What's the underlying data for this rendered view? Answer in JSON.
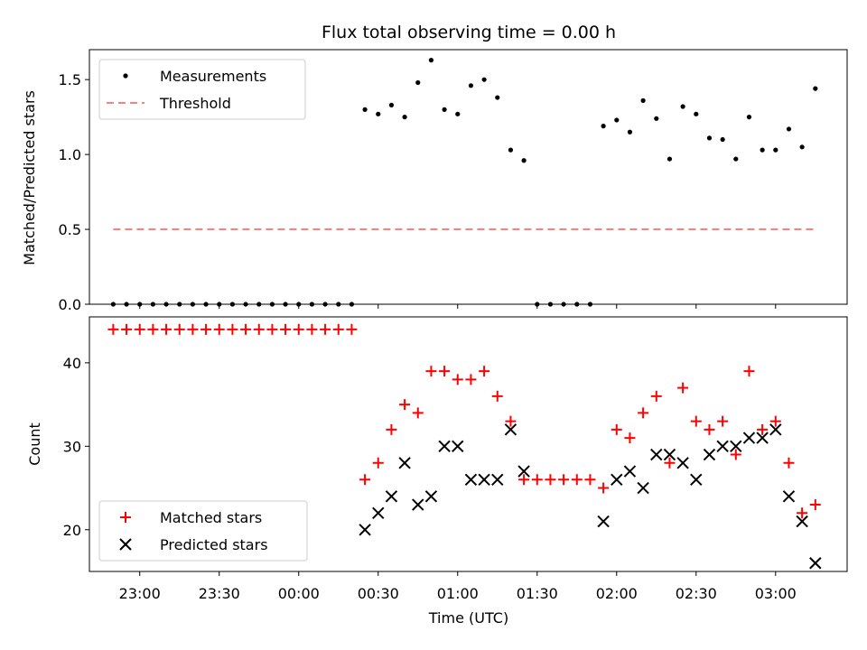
{
  "chart_data": [
    {
      "type": "scatter",
      "title": "Flux total observing time = 0.00 h",
      "xlabel": "",
      "ylabel": "Matched/Predicted stars",
      "ylim": [
        0.0,
        1.7
      ],
      "yticks": [
        0.0,
        0.5,
        1.0,
        1.5
      ],
      "ytick_labels": [
        "0.0",
        "0.5",
        "1.0",
        "1.5"
      ],
      "legend": "top-left",
      "series": [
        {
          "name": "Measurements",
          "style": "dot",
          "color": "#000000",
          "x": [
            "22:50",
            "22:55",
            "23:00",
            "23:05",
            "23:10",
            "23:15",
            "23:20",
            "23:25",
            "23:30",
            "23:35",
            "23:40",
            "23:45",
            "23:50",
            "23:55",
            "00:00",
            "00:05",
            "00:10",
            "00:15",
            "00:20",
            "00:25",
            "00:30",
            "00:35",
            "00:40",
            "00:45",
            "00:50",
            "00:55",
            "01:00",
            "01:05",
            "01:10",
            "01:15",
            "01:20",
            "01:25",
            "01:30",
            "01:35",
            "01:40",
            "01:45",
            "01:50",
            "01:55",
            "02:00",
            "02:05",
            "02:10",
            "02:15",
            "02:20",
            "02:25",
            "02:30",
            "02:35",
            "02:40",
            "02:45",
            "02:50",
            "02:55",
            "03:00",
            "03:05",
            "03:10",
            "03:15"
          ],
          "values": [
            0,
            0,
            0,
            0,
            0,
            0,
            0,
            0,
            0,
            0,
            0,
            0,
            0,
            0,
            0,
            0,
            0,
            0,
            0,
            1.3,
            1.27,
            1.33,
            1.25,
            1.48,
            1.63,
            1.3,
            1.27,
            1.46,
            1.5,
            1.38,
            1.03,
            0.96,
            0,
            0,
            0,
            0,
            0,
            1.19,
            1.23,
            1.15,
            1.36,
            1.24,
            0.97,
            1.32,
            1.27,
            1.11,
            1.1,
            0.97,
            1.25,
            1.03,
            1.03,
            1.17,
            1.05,
            1.44
          ]
        },
        {
          "name": "Threshold",
          "style": "dashed",
          "color": "#ff7f7f",
          "x": [
            "22:50",
            "03:15"
          ],
          "values": [
            0.5,
            0.5
          ]
        }
      ]
    },
    {
      "type": "scatter",
      "xlabel": "Time (UTC)",
      "ylabel": "Count",
      "ylim": [
        15,
        45.5
      ],
      "yticks": [
        20,
        30,
        40
      ],
      "ytick_labels": [
        "20",
        "30",
        "40"
      ],
      "xticks": [
        "23:00",
        "23:30",
        "00:00",
        "00:30",
        "01:00",
        "01:30",
        "02:00",
        "02:30",
        "03:00"
      ],
      "legend": "bottom-left",
      "series": [
        {
          "name": "Matched stars",
          "style": "plus",
          "color": "#ff0000",
          "x": [
            "22:50",
            "22:55",
            "23:00",
            "23:05",
            "23:10",
            "23:15",
            "23:20",
            "23:25",
            "23:30",
            "23:35",
            "23:40",
            "23:45",
            "23:50",
            "23:55",
            "00:00",
            "00:05",
            "00:10",
            "00:15",
            "00:20",
            "00:25",
            "00:30",
            "00:35",
            "00:40",
            "00:45",
            "00:50",
            "00:55",
            "01:00",
            "01:05",
            "01:10",
            "01:15",
            "01:20",
            "01:25",
            "01:30",
            "01:35",
            "01:40",
            "01:45",
            "01:50",
            "01:55",
            "02:00",
            "02:05",
            "02:10",
            "02:15",
            "02:20",
            "02:25",
            "02:30",
            "02:35",
            "02:40",
            "02:45",
            "02:50",
            "02:55",
            "03:00",
            "03:05",
            "03:10",
            "03:15"
          ],
          "values": [
            44,
            44,
            44,
            44,
            44,
            44,
            44,
            44,
            44,
            44,
            44,
            44,
            44,
            44,
            44,
            44,
            44,
            44,
            44,
            26,
            28,
            32,
            35,
            34,
            39,
            39,
            38,
            38,
            39,
            36,
            33,
            26,
            26,
            26,
            26,
            26,
            26,
            25,
            32,
            31,
            34,
            36,
            28,
            37,
            33,
            32,
            33,
            29,
            39,
            32,
            33,
            28,
            22,
            23
          ]
        },
        {
          "name": "Predicted stars",
          "style": "x",
          "color": "#000000",
          "x": [
            "00:25",
            "00:30",
            "00:35",
            "00:40",
            "00:45",
            "00:50",
            "00:55",
            "01:00",
            "01:05",
            "01:10",
            "01:15",
            "01:20",
            "01:25",
            "01:55",
            "02:00",
            "02:05",
            "02:10",
            "02:15",
            "02:20",
            "02:25",
            "02:30",
            "02:35",
            "02:40",
            "02:45",
            "02:50",
            "02:55",
            "03:00",
            "03:05",
            "03:10",
            "03:15"
          ],
          "values": [
            20,
            22,
            24,
            28,
            23,
            24,
            30,
            30,
            26,
            26,
            26,
            32,
            27,
            21,
            26,
            27,
            25,
            29,
            29,
            28,
            26,
            29,
            30,
            30,
            31,
            31,
            32,
            24,
            21,
            16
          ]
        }
      ]
    }
  ]
}
